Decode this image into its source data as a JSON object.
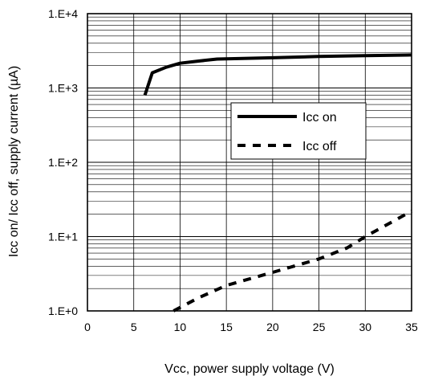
{
  "chart_data": {
    "type": "line",
    "xlabel": "Vcc, power supply voltage (V)",
    "ylabel": "Icc on/ Icc off, supply current (µA)",
    "xlim": [
      0,
      35
    ],
    "ylim": [
      1,
      10000
    ],
    "yscale": "log",
    "x_ticks": [
      "0",
      "5",
      "10",
      "15",
      "20",
      "25",
      "30",
      "35"
    ],
    "y_ticks": [
      "1.E+0",
      "1.E+1",
      "1.E+2",
      "1.E+3",
      "1.E+4"
    ],
    "grid": true,
    "legend_position": "center-right",
    "series": [
      {
        "name": "Icc on",
        "style": "solid",
        "color": "#000000",
        "x": [
          6.2,
          7.0,
          8.5,
          10.0,
          12.0,
          14.0,
          20.0,
          25.0,
          30.0,
          35.0
        ],
        "y": [
          800,
          1600,
          1900,
          2150,
          2300,
          2450,
          2550,
          2650,
          2720,
          2780
        ]
      },
      {
        "name": "Icc off",
        "style": "dashed",
        "color": "#000000",
        "x": [
          9.3,
          12.0,
          15.0,
          20.0,
          25.0,
          28.0,
          30.0,
          35.0
        ],
        "y": [
          1.0,
          1.5,
          2.2,
          3.3,
          5.0,
          7.0,
          10.0,
          22.0
        ]
      }
    ]
  }
}
